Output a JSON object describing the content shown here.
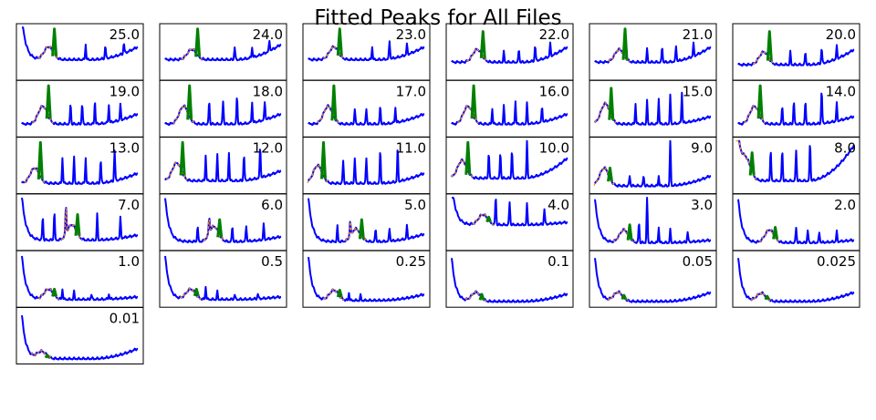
{
  "chart_data": {
    "type": "line",
    "title": "Fitted Peaks for All Files",
    "grid": false,
    "axes_ticks": false,
    "colors": {
      "trace": "#0000ff",
      "fitted_peak": "#008000",
      "fit_curve": "#ff8c00"
    },
    "layout": {
      "columns": 6
    },
    "panels": [
      {
        "label": "25.0",
        "peak_position": 0.28,
        "peak_height": 0.95,
        "base": 0.35,
        "hump": 0.25,
        "spikes": [
          [
            0.55,
            0.3
          ],
          [
            0.72,
            0.25
          ],
          [
            0.88,
            0.2
          ]
        ],
        "start_drop": true,
        "end_rise": 0.25
      },
      {
        "label": "24.0",
        "peak_position": 0.28,
        "peak_height": 0.95,
        "base": 0.35,
        "hump": 0.2,
        "spikes": [
          [
            0.6,
            0.25
          ],
          [
            0.75,
            0.2
          ],
          [
            0.9,
            0.2
          ]
        ],
        "start_drop": false,
        "end_rise": 0.3
      },
      {
        "label": "23.0",
        "peak_position": 0.27,
        "peak_height": 0.95,
        "base": 0.35,
        "hump": 0.25,
        "spikes": [
          [
            0.55,
            0.25
          ],
          [
            0.7,
            0.35
          ],
          [
            0.85,
            0.2
          ]
        ],
        "start_drop": false,
        "end_rise": 0.25
      },
      {
        "label": "22.0",
        "peak_position": 0.27,
        "peak_height": 0.9,
        "base": 0.3,
        "hump": 0.25,
        "spikes": [
          [
            0.45,
            0.2
          ],
          [
            0.58,
            0.25
          ],
          [
            0.72,
            0.3
          ],
          [
            0.85,
            0.25
          ]
        ],
        "start_drop": false,
        "end_rise": 0.3
      },
      {
        "label": "21.0",
        "peak_position": 0.26,
        "peak_height": 0.95,
        "base": 0.3,
        "hump": 0.25,
        "spikes": [
          [
            0.45,
            0.25
          ],
          [
            0.58,
            0.3
          ],
          [
            0.7,
            0.3
          ],
          [
            0.85,
            0.25
          ]
        ],
        "start_drop": false,
        "end_rise": 0.3
      },
      {
        "label": "20.0",
        "peak_position": 0.27,
        "peak_height": 0.9,
        "base": 0.25,
        "hump": 0.25,
        "spikes": [
          [
            0.45,
            0.25
          ],
          [
            0.58,
            0.25
          ],
          [
            0.72,
            0.3
          ],
          [
            0.85,
            0.25
          ]
        ],
        "start_drop": false,
        "end_rise": 0.3
      },
      {
        "label": "19.0",
        "peak_position": 0.23,
        "peak_height": 0.95,
        "base": 0.2,
        "hump": 0.35,
        "spikes": [
          [
            0.42,
            0.4
          ],
          [
            0.52,
            0.4
          ],
          [
            0.63,
            0.45
          ],
          [
            0.75,
            0.35
          ],
          [
            0.85,
            0.3
          ]
        ],
        "start_drop": false,
        "end_rise": 0.2
      },
      {
        "label": "18.0",
        "peak_position": 0.21,
        "peak_height": 0.95,
        "base": 0.2,
        "hump": 0.35,
        "spikes": [
          [
            0.38,
            0.45
          ],
          [
            0.5,
            0.45
          ],
          [
            0.62,
            0.55
          ],
          [
            0.75,
            0.4
          ],
          [
            0.86,
            0.35
          ]
        ],
        "start_drop": false,
        "end_rise": 0.2
      },
      {
        "label": "17.0",
        "peak_position": 0.22,
        "peak_height": 0.95,
        "base": 0.2,
        "hump": 0.35,
        "spikes": [
          [
            0.4,
            0.3
          ],
          [
            0.5,
            0.3
          ],
          [
            0.62,
            0.35
          ],
          [
            0.75,
            0.3
          ]
        ],
        "start_drop": false,
        "end_rise": 0.2
      },
      {
        "label": "16.0",
        "peak_position": 0.19,
        "peak_height": 0.95,
        "base": 0.2,
        "hump": 0.35,
        "spikes": [
          [
            0.35,
            0.3
          ],
          [
            0.45,
            0.35
          ],
          [
            0.55,
            0.45
          ],
          [
            0.65,
            0.4
          ],
          [
            0.78,
            0.3
          ]
        ],
        "start_drop": false,
        "end_rise": 0.2
      },
      {
        "label": "15.0",
        "peak_position": 0.14,
        "peak_height": 0.9,
        "base": 0.2,
        "hump": 0.4,
        "spikes": [
          [
            0.35,
            0.4
          ],
          [
            0.45,
            0.45
          ],
          [
            0.55,
            0.5
          ],
          [
            0.65,
            0.55
          ],
          [
            0.75,
            0.6
          ]
        ],
        "start_drop": false,
        "end_rise": 0.15
      },
      {
        "label": "14.0",
        "peak_position": 0.19,
        "peak_height": 0.95,
        "base": 0.2,
        "hump": 0.35,
        "spikes": [
          [
            0.38,
            0.35
          ],
          [
            0.48,
            0.45
          ],
          [
            0.58,
            0.45
          ],
          [
            0.72,
            0.65
          ],
          [
            0.85,
            0.35
          ]
        ],
        "start_drop": false,
        "end_rise": 0.15
      },
      {
        "label": "13.0",
        "peak_position": 0.16,
        "peak_height": 0.95,
        "base": 0.15,
        "hump": 0.3,
        "spikes": [
          [
            0.35,
            0.5
          ],
          [
            0.45,
            0.5
          ],
          [
            0.55,
            0.5
          ],
          [
            0.68,
            0.45
          ],
          [
            0.8,
            0.6
          ]
        ],
        "start_drop": false,
        "end_rise": 0.2
      },
      {
        "label": "12.0",
        "peak_position": 0.15,
        "peak_height": 0.95,
        "base": 0.2,
        "hump": 0.35,
        "spikes": [
          [
            0.35,
            0.5
          ],
          [
            0.45,
            0.5
          ],
          [
            0.55,
            0.55
          ],
          [
            0.68,
            0.5
          ],
          [
            0.82,
            0.6
          ]
        ],
        "start_drop": false,
        "end_rise": 0.2
      },
      {
        "label": "11.0",
        "peak_position": 0.13,
        "peak_height": 0.95,
        "base": 0.15,
        "hump": 0.35,
        "spikes": [
          [
            0.3,
            0.45
          ],
          [
            0.4,
            0.5
          ],
          [
            0.5,
            0.5
          ],
          [
            0.62,
            0.65
          ],
          [
            0.77,
            0.65
          ]
        ],
        "start_drop": false,
        "end_rise": 0.2
      },
      {
        "label": "10.0",
        "peak_position": 0.14,
        "peak_height": 0.95,
        "base": 0.25,
        "hump": 0.35,
        "spikes": [
          [
            0.32,
            0.5
          ],
          [
            0.42,
            0.5
          ],
          [
            0.52,
            0.55
          ],
          [
            0.65,
            0.7
          ]
        ],
        "start_drop": false,
        "end_rise": 0.4
      },
      {
        "label": "9.0",
        "peak_position": 0.13,
        "peak_height": 0.45,
        "base": 0.1,
        "hump": 0.35,
        "spikes": [
          [
            0.3,
            0.2
          ],
          [
            0.42,
            0.2
          ],
          [
            0.55,
            0.2
          ],
          [
            0.65,
            0.95
          ]
        ],
        "start_drop": false,
        "end_rise": 0.2
      },
      {
        "label": "8.0",
        "peak_position": 0.12,
        "peak_height": 0.75,
        "base": 0.2,
        "hump": 0.35,
        "spikes": [
          [
            0.28,
            0.6
          ],
          [
            0.38,
            0.6
          ],
          [
            0.5,
            0.6
          ],
          [
            0.62,
            0.75
          ]
        ],
        "start_drop": true,
        "end_rise": 0.7
      },
      {
        "label": "7.0",
        "peak_position": 0.48,
        "peak_height": 0.65,
        "base": 0.15,
        "hump": 0.3,
        "spikes": [
          [
            0.18,
            0.45
          ],
          [
            0.28,
            0.55
          ],
          [
            0.38,
            0.55
          ],
          [
            0.65,
            0.5
          ],
          [
            0.85,
            0.4
          ]
        ],
        "start_drop": true,
        "end_rise": 0.1
      },
      {
        "label": "6.0",
        "peak_position": 0.47,
        "peak_height": 0.55,
        "base": 0.12,
        "hump": 0.3,
        "spikes": [
          [
            0.28,
            0.3
          ],
          [
            0.38,
            0.3
          ],
          [
            0.58,
            0.3
          ],
          [
            0.7,
            0.3
          ],
          [
            0.85,
            0.3
          ]
        ],
        "start_drop": true,
        "end_rise": 0.1
      },
      {
        "label": "5.0",
        "peak_position": 0.46,
        "peak_height": 0.55,
        "base": 0.12,
        "hump": 0.25,
        "spikes": [
          [
            0.25,
            0.3
          ],
          [
            0.36,
            0.3
          ],
          [
            0.58,
            0.25
          ],
          [
            0.7,
            0.25
          ],
          [
            0.85,
            0.25
          ]
        ],
        "start_drop": true,
        "end_rise": 0.15
      },
      {
        "label": "4.0",
        "peak_position": 0.32,
        "peak_height": 0.6,
        "base": 0.45,
        "hump": 0.2,
        "spikes": [
          [
            0.38,
            0.55
          ],
          [
            0.5,
            0.45
          ],
          [
            0.65,
            0.4
          ],
          [
            0.8,
            0.3
          ]
        ],
        "start_drop": true,
        "end_rise": 0.05
      },
      {
        "label": "3.0",
        "peak_position": 0.3,
        "peak_height": 0.45,
        "base": 0.1,
        "hump": 0.25,
        "spikes": [
          [
            0.38,
            0.4
          ],
          [
            0.45,
            0.95
          ],
          [
            0.55,
            0.3
          ],
          [
            0.65,
            0.25
          ],
          [
            0.8,
            0.2
          ]
        ],
        "start_drop": true,
        "end_rise": 0.05
      },
      {
        "label": "2.0",
        "peak_position": 0.32,
        "peak_height": 0.4,
        "base": 0.1,
        "hump": 0.25,
        "spikes": [
          [
            0.5,
            0.3
          ],
          [
            0.6,
            0.25
          ],
          [
            0.7,
            0.2
          ],
          [
            0.85,
            0.2
          ]
        ],
        "start_drop": true,
        "end_rise": 0.05
      },
      {
        "label": "1.0",
        "peak_position": 0.28,
        "peak_height": 0.3,
        "base": 0.1,
        "hump": 0.2,
        "spikes": [
          [
            0.35,
            0.2
          ],
          [
            0.45,
            0.15
          ],
          [
            0.6,
            0.1
          ],
          [
            0.75,
            0.1
          ]
        ],
        "start_drop": true,
        "end_rise": 0.05
      },
      {
        "label": "0.5",
        "peak_position": 0.27,
        "peak_height": 0.3,
        "base": 0.1,
        "hump": 0.2,
        "spikes": [
          [
            0.35,
            0.25
          ],
          [
            0.45,
            0.15
          ],
          [
            0.6,
            0.1
          ],
          [
            0.8,
            0.1
          ]
        ],
        "start_drop": true,
        "end_rise": 0.05
      },
      {
        "label": "0.25",
        "peak_position": 0.27,
        "peak_height": 0.28,
        "base": 0.08,
        "hump": 0.2,
        "spikes": [
          [
            0.35,
            0.15
          ],
          [
            0.45,
            0.1
          ]
        ],
        "start_drop": true,
        "end_rise": 0.12
      },
      {
        "label": "0.1",
        "peak_position": 0.26,
        "peak_height": 0.2,
        "base": 0.06,
        "hump": 0.18,
        "spikes": [],
        "start_drop": true,
        "end_rise": 0.15
      },
      {
        "label": "0.05",
        "peak_position": 0.25,
        "peak_height": 0.18,
        "base": 0.06,
        "hump": 0.18,
        "spikes": [],
        "start_drop": true,
        "end_rise": 0.18
      },
      {
        "label": "0.025",
        "peak_position": 0.25,
        "peak_height": 0.16,
        "base": 0.06,
        "hump": 0.16,
        "spikes": [],
        "start_drop": true,
        "end_rise": 0.18
      },
      {
        "label": "0.01",
        "peak_position": 0.22,
        "peak_height": 0.12,
        "base": 0.05,
        "hump": 0.14,
        "spikes": [],
        "start_drop": true,
        "end_rise": 0.2
      }
    ]
  }
}
